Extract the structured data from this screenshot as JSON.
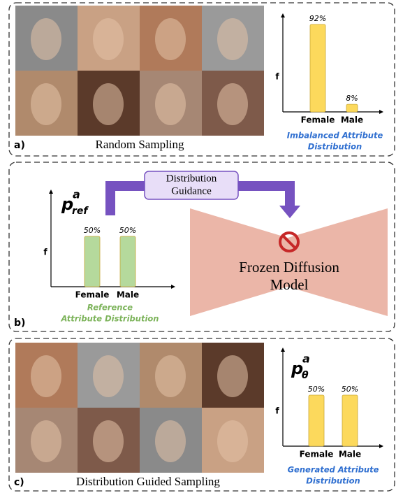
{
  "panels": [
    {
      "label": "a)",
      "caption": "Random Sampling",
      "chart": {
        "axis_label": "f",
        "categories": [
          "Female",
          "Male"
        ],
        "values": [
          92,
          8
        ],
        "value_labels": [
          "92%",
          "8%"
        ],
        "color": "#fcd95c",
        "caption_lines": [
          "Imbalanced Attribute",
          "Distribution"
        ],
        "caption_color": "#2f6fd0"
      }
    },
    {
      "label": "b)",
      "chart": {
        "title": {
          "base": "p",
          "sup": "a",
          "sub": "ref"
        },
        "axis_label": "f",
        "categories": [
          "Female",
          "Male"
        ],
        "values": [
          50,
          50
        ],
        "value_labels": [
          "50%",
          "50%"
        ],
        "color": "#b5d99c",
        "caption_lines": [
          "Reference",
          "Attribute Distribution"
        ],
        "caption_color": "#7cb35a"
      },
      "guidance": [
        "Distribution",
        "Guidance"
      ],
      "model": [
        "Frozen Diffusion",
        "Model"
      ]
    },
    {
      "label": "c)",
      "caption": "Distribution Guided Sampling",
      "chart": {
        "title": {
          "base": "p",
          "sup": "a",
          "sub": "θ"
        },
        "axis_label": "f",
        "categories": [
          "Female",
          "Male"
        ],
        "values": [
          50,
          50
        ],
        "value_labels": [
          "50%",
          "50%"
        ],
        "color": "#fcd95c",
        "caption_lines": [
          "Generated Attribute",
          "Distribution"
        ],
        "caption_color": "#2f6fd0"
      }
    }
  ]
}
